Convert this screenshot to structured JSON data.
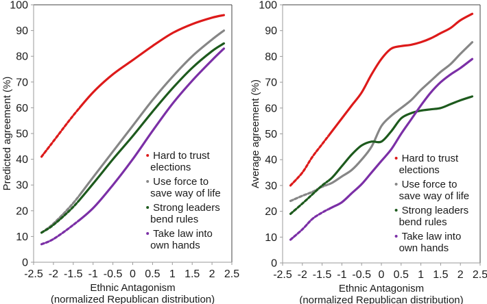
{
  "chart_data": [
    {
      "type": "line",
      "panel": "left",
      "title": "",
      "xlabel": "Ethnic Antagonism",
      "xlabel_sub": "(normalized Republican distribution)",
      "ylabel": "Predicted agreement (%)",
      "xlim": [
        -2.5,
        2.5
      ],
      "ylim": [
        0,
        100
      ],
      "xticks": [
        "-2.5",
        "-2",
        "-1.5",
        "-1",
        "-0.5",
        "0",
        "0.5",
        "1",
        "1.5",
        "2",
        "2.5"
      ],
      "yticks": [
        "0",
        "10",
        "20",
        "30",
        "40",
        "50",
        "60",
        "70",
        "80",
        "90",
        "100"
      ],
      "grid": false,
      "legend_position": "bottom-right",
      "x": [
        -2.3,
        -2.0,
        -1.5,
        -1.0,
        -0.5,
        0.0,
        0.5,
        1.0,
        1.5,
        2.0,
        2.3
      ],
      "series": [
        {
          "name": "Hard to trust elections",
          "color": "#dd1a1a",
          "values": [
            41,
            47,
            57,
            66,
            73,
            78.5,
            84,
            89,
            92.5,
            95,
            96
          ]
        },
        {
          "name": "Use force to save way of life",
          "color": "#868686",
          "values": [
            11.5,
            15,
            23,
            33,
            43,
            53,
            63,
            72,
            80,
            86.5,
            90
          ]
        },
        {
          "name": "Strong leaders bend rules",
          "color": "#1d5a1d",
          "values": [
            11.5,
            14.5,
            21.5,
            30.5,
            40,
            49,
            58.5,
            67.5,
            75.5,
            82,
            85
          ]
        },
        {
          "name": "Take law into own hands",
          "color": "#7b2fa6",
          "values": [
            7,
            9,
            14.5,
            21,
            30,
            40,
            51,
            61.5,
            70.5,
            78.5,
            83
          ]
        }
      ]
    },
    {
      "type": "line",
      "panel": "right",
      "title": "",
      "xlabel": "Ethnic Antagonism",
      "xlabel_sub": "(normalized Republican distribution)",
      "ylabel": "Average agreement (%)",
      "xlim": [
        -2.5,
        2.5
      ],
      "ylim": [
        0,
        100
      ],
      "xticks": [
        "-2.5",
        "-2",
        "-1.5",
        "-1",
        "-0.5",
        "0",
        "0.5",
        "1",
        "1.5",
        "2",
        "2.5"
      ],
      "yticks": [
        "0",
        "10",
        "20",
        "30",
        "40",
        "50",
        "60",
        "70",
        "80",
        "90",
        "100"
      ],
      "grid": false,
      "legend_position": "bottom-right",
      "x": [
        -2.3,
        -2.0,
        -1.75,
        -1.5,
        -1.25,
        -1.0,
        -0.75,
        -0.5,
        -0.25,
        0.0,
        0.25,
        0.5,
        0.75,
        1.0,
        1.25,
        1.5,
        1.75,
        2.0,
        2.3
      ],
      "series": [
        {
          "name": "Hard to trust elections",
          "color": "#dd1a1a",
          "values": [
            30,
            35,
            41,
            46,
            51,
            56,
            61,
            66,
            73,
            79,
            83,
            84,
            84.5,
            85.5,
            87,
            89,
            91,
            94,
            96.5
          ]
        },
        {
          "name": "Use force to save way of life",
          "color": "#868686",
          "values": [
            24,
            26,
            27.5,
            29.5,
            31,
            33.5,
            36,
            40,
            45,
            53,
            57,
            60,
            63,
            67,
            70.5,
            74,
            77,
            81,
            85.5
          ]
        },
        {
          "name": "Strong leaders bend rules",
          "color": "#1d5a1d",
          "values": [
            19,
            23,
            26.5,
            30,
            33,
            37.5,
            42,
            45.5,
            47,
            47,
            51,
            56,
            58,
            59,
            59.5,
            60,
            61.5,
            63,
            64.5
          ]
        },
        {
          "name": "Take law into own hands",
          "color": "#7b2fa6",
          "values": [
            9,
            13,
            17,
            19.5,
            21.5,
            23.5,
            27,
            30.5,
            35,
            39.5,
            44,
            50,
            55.5,
            61,
            66,
            70,
            73,
            75.5,
            79
          ]
        }
      ]
    }
  ]
}
